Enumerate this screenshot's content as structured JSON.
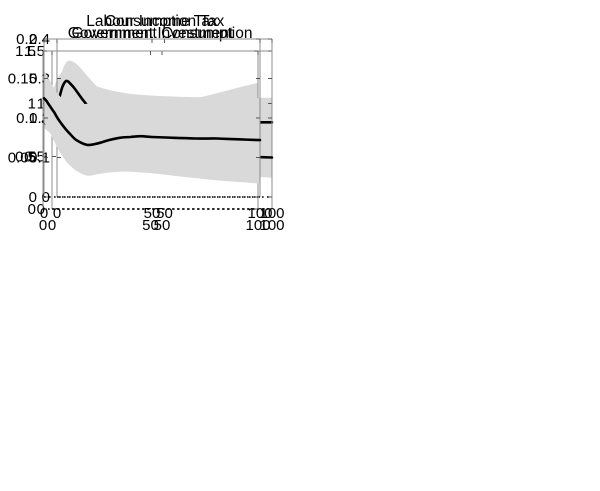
{
  "colors": {
    "background": "#ffffff",
    "band": "#d9d9d9",
    "line": "#000000",
    "axis": "#8c8c8c",
    "tick": "#555555",
    "zero_line": "#000000",
    "text": "#000000"
  },
  "chart_data": [
    {
      "type": "line",
      "position": "top-left",
      "title": "Government Consumption",
      "xlabel": "",
      "ylabel": "",
      "xlim": [
        0,
        100
      ],
      "ylim": [
        0,
        1.5
      ],
      "xticks": [
        0,
        50,
        100
      ],
      "xtick_labels": [
        "0",
        "50",
        "100"
      ],
      "yticks": [
        0,
        0.5,
        1,
        1.5
      ],
      "ytick_labels": [
        "0",
        "0.5",
        "1",
        "1.5"
      ],
      "grid": false,
      "legend": "none",
      "zero_line": "dotted",
      "x": [
        0,
        1,
        2,
        3,
        4,
        5,
        6,
        8,
        10,
        12,
        15,
        20,
        25,
        30,
        35,
        40,
        45,
        50,
        60,
        70,
        80,
        90,
        100
      ],
      "series": [
        {
          "name": "mean-response",
          "values": [
            0.95,
            1.0,
            1.04,
            1.063,
            1.075,
            1.074,
            1.065,
            1.032,
            0.995,
            0.963,
            0.924,
            0.884,
            0.862,
            0.85,
            0.844,
            0.84,
            0.837,
            0.835,
            0.831,
            0.828,
            0.826,
            0.824,
            0.823
          ]
        },
        {
          "name": "confidence-band-upper",
          "values": [
            1.1,
            1.16,
            1.215,
            1.258,
            1.287,
            1.303,
            1.308,
            1.298,
            1.275,
            1.25,
            1.215,
            1.168,
            1.135,
            1.112,
            1.096,
            1.085,
            1.078,
            1.072,
            1.064,
            1.06,
            1.058,
            1.057,
            1.056
          ]
        },
        {
          "name": "confidence-band-lower",
          "values": [
            0.8,
            0.768,
            0.745,
            0.73,
            0.722,
            0.72,
            0.722,
            0.721,
            0.71,
            0.695,
            0.672,
            0.65,
            0.638,
            0.63,
            0.623,
            0.617,
            0.611,
            0.607,
            0.601,
            0.598,
            0.596,
            0.595,
            0.595
          ]
        }
      ]
    },
    {
      "type": "line",
      "position": "top-right",
      "title": "Government Investment",
      "xlabel": "",
      "ylabel": "",
      "xlim": [
        0,
        100
      ],
      "ylim": [
        0,
        1.5
      ],
      "xticks": [
        0,
        50,
        100
      ],
      "xtick_labels": [
        "0",
        "50",
        "100"
      ],
      "yticks": [
        0,
        0.5,
        1,
        1.5
      ],
      "ytick_labels": [
        "0",
        "0.5",
        "1",
        "1.5"
      ],
      "grid": false,
      "legend": "none",
      "zero_line": "dotted",
      "x": [
        0,
        1,
        2,
        3,
        4,
        5,
        6,
        8,
        10,
        12,
        15,
        20,
        25,
        30,
        35,
        40,
        45,
        50,
        60,
        70,
        80,
        90,
        100
      ],
      "series": [
        {
          "name": "mean-response",
          "values": [
            0.83,
            0.816,
            0.801,
            0.786,
            0.771,
            0.757,
            0.745,
            0.726,
            0.713,
            0.704,
            0.698,
            0.701,
            0.716,
            0.738,
            0.761,
            0.784,
            0.806,
            0.827,
            0.864,
            0.896,
            0.924,
            0.948,
            0.968
          ]
        },
        {
          "name": "confidence-band-upper",
          "values": [
            0.88,
            0.869,
            0.858,
            0.847,
            0.837,
            0.827,
            0.818,
            0.806,
            0.798,
            0.794,
            0.794,
            0.805,
            0.825,
            0.849,
            0.874,
            0.899,
            0.924,
            0.948,
            0.996,
            1.045,
            1.095,
            1.148,
            1.198
          ]
        },
        {
          "name": "confidence-band-lower",
          "values": [
            0.78,
            0.762,
            0.744,
            0.726,
            0.707,
            0.69,
            0.675,
            0.648,
            0.627,
            0.611,
            0.594,
            0.583,
            0.586,
            0.597,
            0.611,
            0.626,
            0.641,
            0.656,
            0.685,
            0.712,
            0.738,
            0.762,
            0.784
          ]
        }
      ]
    },
    {
      "type": "line",
      "position": "bottom-left",
      "title": "Consumption Tax",
      "xlabel": "",
      "ylabel": "",
      "xlim": [
        0,
        100
      ],
      "ylim": [
        0,
        0.4
      ],
      "xticks": [
        0,
        50,
        100
      ],
      "xtick_labels": [
        "0",
        "50",
        "100"
      ],
      "yticks": [
        0,
        0.1,
        0.2,
        0.3,
        0.4
      ],
      "ytick_labels": [
        "0",
        "0.1",
        "0.2",
        "0.3",
        "0.4"
      ],
      "grid": false,
      "legend": "none",
      "zero_line": "dotted",
      "x": [
        0,
        1,
        2,
        3,
        4,
        5,
        6,
        8,
        10,
        12,
        15,
        20,
        25,
        30,
        35,
        40,
        45,
        50,
        60,
        70,
        80,
        90,
        100
      ],
      "series": [
        {
          "name": "mean-response",
          "values": [
            0.22,
            0.248,
            0.27,
            0.285,
            0.293,
            0.293,
            0.288,
            0.276,
            0.261,
            0.246,
            0.226,
            0.196,
            0.174,
            0.158,
            0.146,
            0.137,
            0.13,
            0.124,
            0.115,
            0.109,
            0.105,
            0.102,
            0.1
          ]
        },
        {
          "name": "confidence-band-upper",
          "values": [
            0.26,
            0.288,
            0.311,
            0.328,
            0.339,
            0.344,
            0.345,
            0.341,
            0.332,
            0.32,
            0.301,
            0.272,
            0.249,
            0.231,
            0.218,
            0.208,
            0.2,
            0.194,
            0.185,
            0.179,
            0.174,
            0.171,
            0.168
          ]
        },
        {
          "name": "confidence-band-lower",
          "values": [
            0.18,
            0.205,
            0.224,
            0.237,
            0.243,
            0.243,
            0.238,
            0.225,
            0.208,
            0.19,
            0.165,
            0.134,
            0.112,
            0.098,
            0.088,
            0.081,
            0.076,
            0.072,
            0.065,
            0.06,
            0.055,
            0.052,
            0.049
          ]
        }
      ]
    },
    {
      "type": "line",
      "position": "bottom-right",
      "title": "Labour Income Tax",
      "xlabel": "",
      "ylabel": "",
      "xlim": [
        0,
        100
      ],
      "ylim": [
        0,
        0.2
      ],
      "xticks": [
        0,
        50,
        100
      ],
      "xtick_labels": [
        "0",
        "50",
        "100"
      ],
      "yticks": [
        0,
        0.05,
        0.1,
        0.15,
        0.2
      ],
      "ytick_labels": [
        "0",
        "0.05",
        "0.1",
        "0.15",
        "0.2"
      ],
      "grid": false,
      "legend": "none",
      "zero_line": "dotted",
      "x": [
        0,
        1,
        2,
        3,
        4,
        5,
        6,
        8,
        10,
        12,
        15,
        20,
        25,
        30,
        35,
        40,
        45,
        50,
        60,
        70,
        80,
        90,
        100
      ],
      "series": [
        {
          "name": "mean-response",
          "values": [
            0.125,
            0.122,
            0.118,
            0.114,
            0.11,
            0.106,
            0.101,
            0.093,
            0.086,
            0.08,
            0.072,
            0.066,
            0.068,
            0.072,
            0.075,
            0.076,
            0.077,
            0.076,
            0.075,
            0.074,
            0.074,
            0.073,
            0.072
          ]
        },
        {
          "name": "confidence-band-upper",
          "values": [
            0.16,
            0.155,
            0.15,
            0.146,
            0.141,
            0.137,
            0.132,
            0.126,
            0.122,
            0.12,
            0.117,
            0.118,
            0.12,
            0.122,
            0.123,
            0.124,
            0.125,
            0.125,
            0.126,
            0.125,
            0.125,
            0.126,
            0.125
          ]
        },
        {
          "name": "confidence-band-lower",
          "values": [
            0.095,
            0.09,
            0.085,
            0.08,
            0.074,
            0.069,
            0.063,
            0.054,
            0.046,
            0.04,
            0.033,
            0.027,
            0.029,
            0.031,
            0.032,
            0.032,
            0.031,
            0.03,
            0.027,
            0.024,
            0.021,
            0.019,
            0.017
          ]
        }
      ]
    }
  ]
}
